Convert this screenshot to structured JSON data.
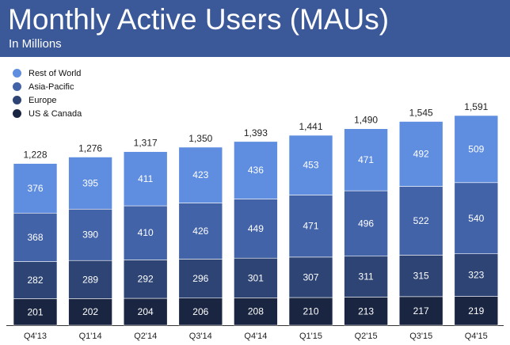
{
  "header": {
    "title": "Monthly Active Users (MAUs)",
    "subtitle": "In Millions"
  },
  "chart_data": {
    "type": "bar",
    "stacked": true,
    "title": "Monthly Active Users (MAUs)",
    "subtitle": "In Millions",
    "categories": [
      "Q4'13",
      "Q1'14",
      "Q2'14",
      "Q3'14",
      "Q4'14",
      "Q1'15",
      "Q2'15",
      "Q3'15",
      "Q4'15"
    ],
    "series": [
      {
        "name": "US & Canada",
        "color": "#1a2641",
        "values": [
          201,
          202,
          204,
          206,
          208,
          210,
          213,
          217,
          219
        ]
      },
      {
        "name": "Europe",
        "color": "#2d4474",
        "values": [
          282,
          289,
          292,
          296,
          301,
          307,
          311,
          315,
          323
        ]
      },
      {
        "name": "Asia-Pacific",
        "color": "#4363a8",
        "values": [
          368,
          390,
          410,
          426,
          449,
          471,
          496,
          522,
          540
        ]
      },
      {
        "name": "Rest of World",
        "color": "#5f8de0",
        "values": [
          376,
          395,
          411,
          423,
          436,
          453,
          471,
          492,
          509
        ]
      }
    ],
    "totals": [
      "1,228",
      "1,276",
      "1,317",
      "1,350",
      "1,393",
      "1,441",
      "1,490",
      "1,545",
      "1,591"
    ],
    "legend_order": [
      "Rest of World",
      "Asia-Pacific",
      "Europe",
      "US & Canada"
    ],
    "legend_position": "top-left",
    "ylim": [
      0,
      1591
    ],
    "grid": false
  }
}
